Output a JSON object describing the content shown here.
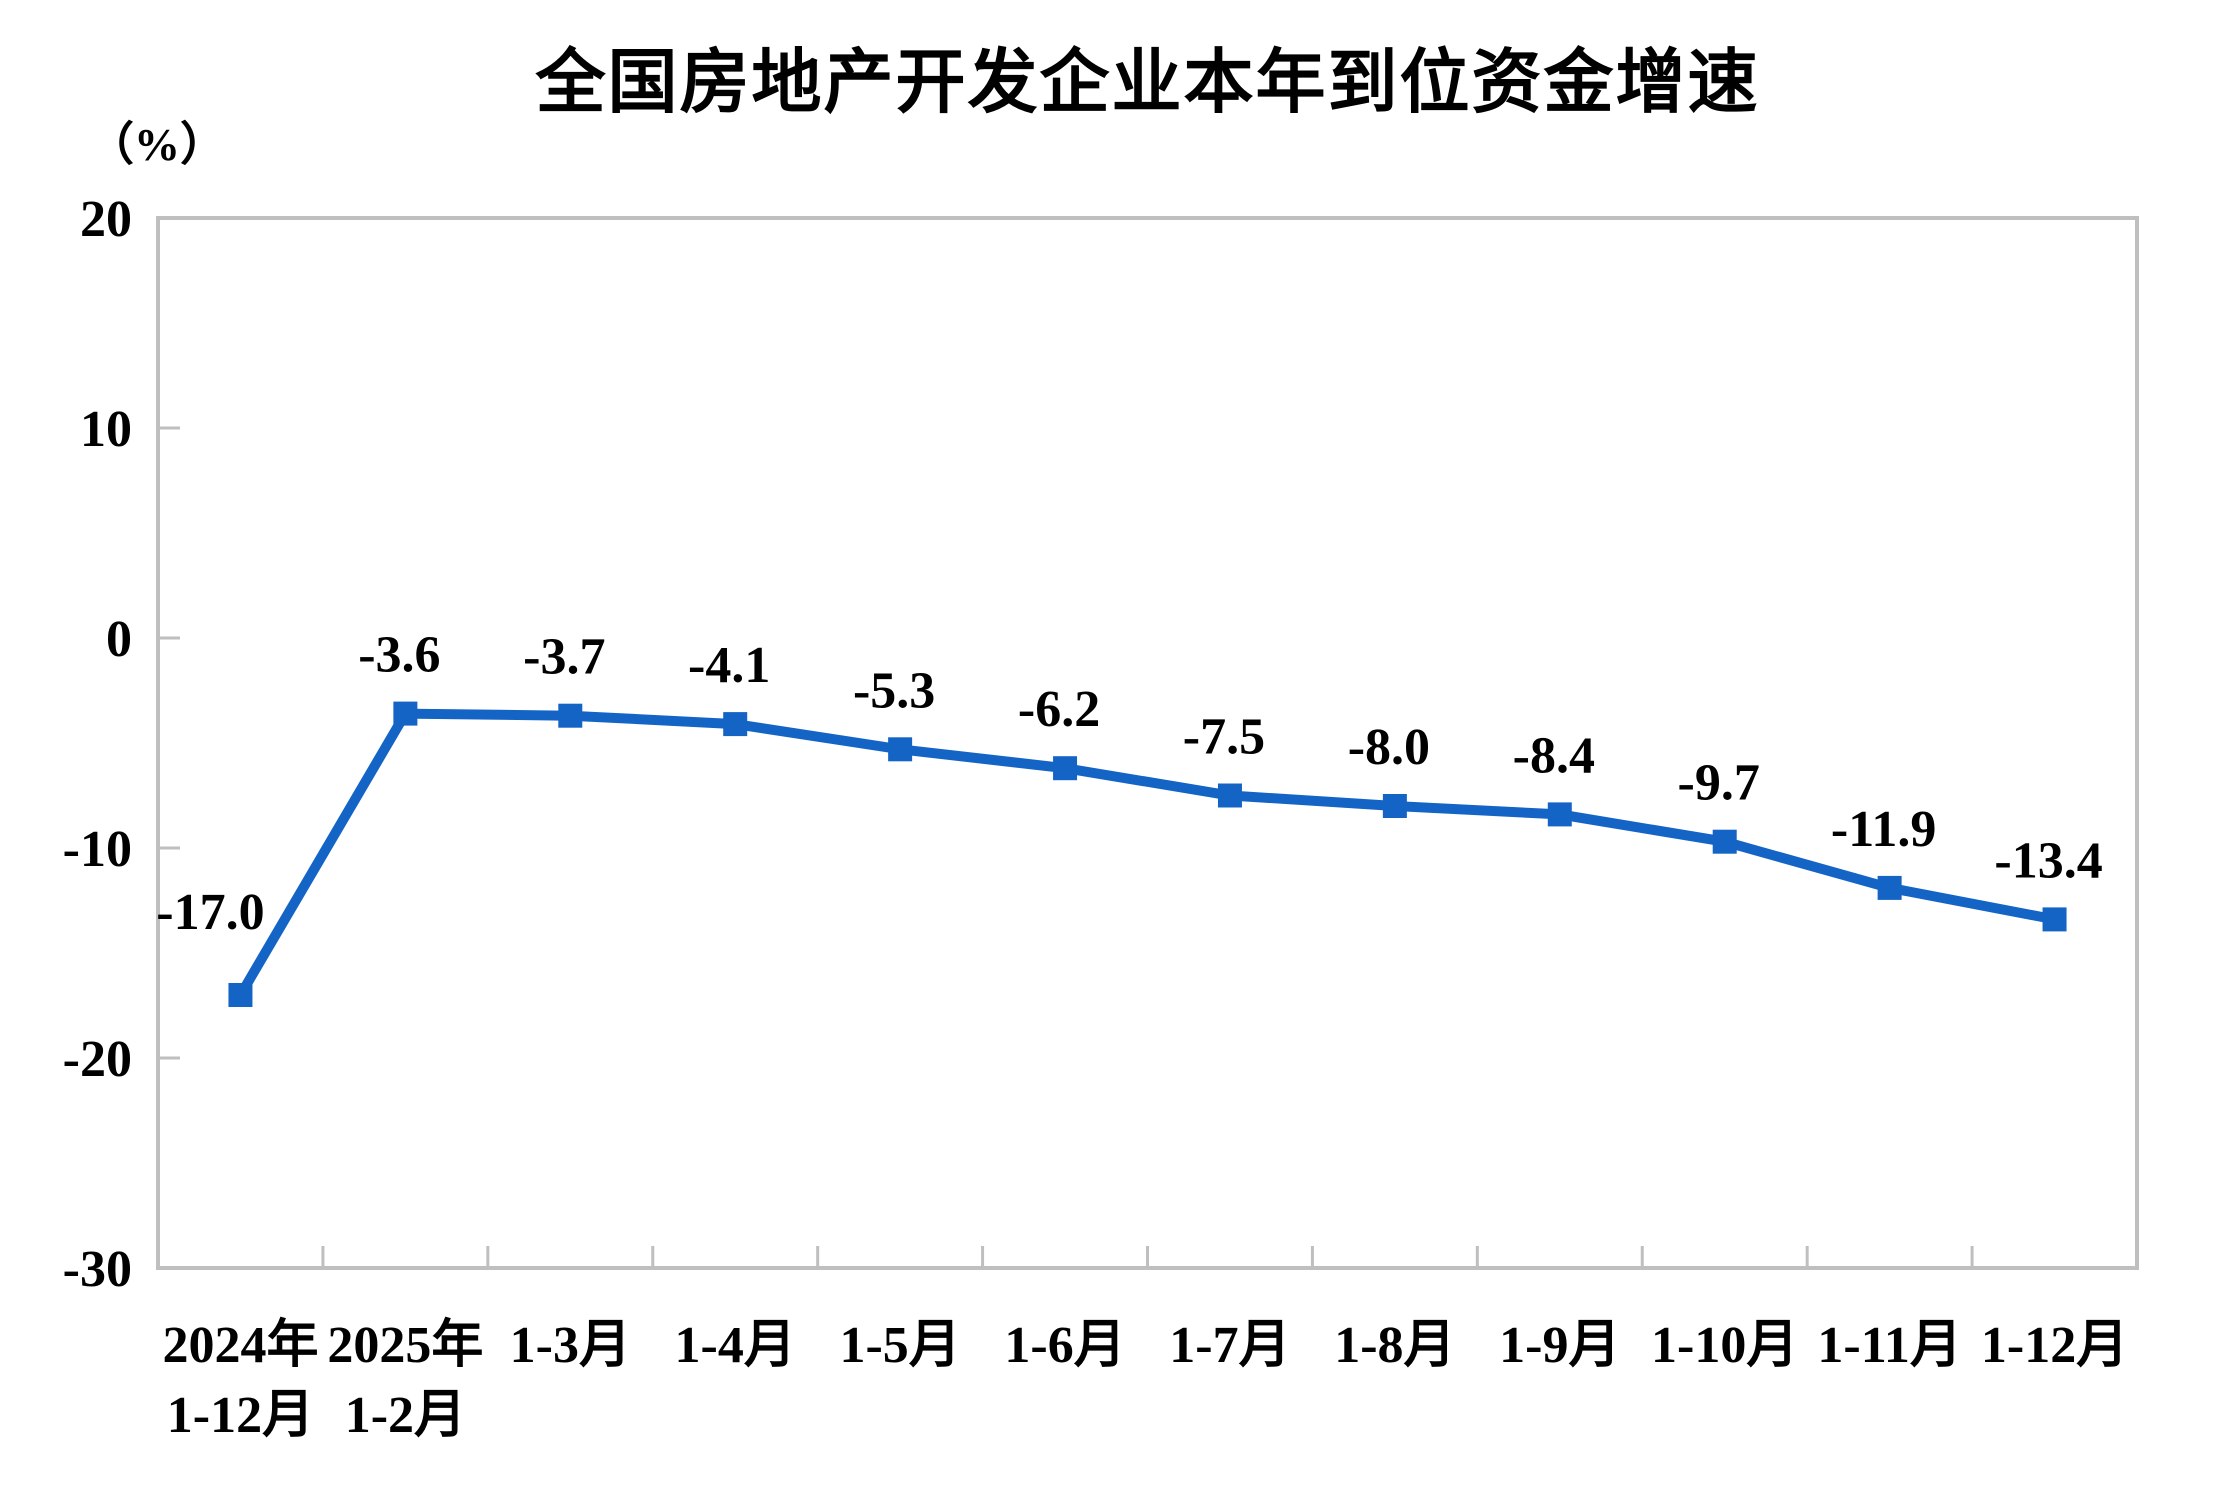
{
  "page": {
    "background": "#ffffff"
  },
  "chart_data": {
    "type": "line",
    "title": "全国房地产开发企业本年到位资金增速",
    "ylabel": "（%）",
    "xlabel": "",
    "categories": [
      [
        "2024年",
        "1-12月"
      ],
      [
        "2025年",
        "1-2月"
      ],
      [
        "1-3月"
      ],
      [
        "1-4月"
      ],
      [
        "1-5月"
      ],
      [
        "1-6月"
      ],
      [
        "1-7月"
      ],
      [
        "1-8月"
      ],
      [
        "1-9月"
      ],
      [
        "1-10月"
      ],
      [
        "1-11月"
      ],
      [
        "1-12月"
      ]
    ],
    "series": [
      {
        "name": "本年到位资金增速",
        "values": [
          -17.0,
          -3.6,
          -3.7,
          -4.1,
          -5.3,
          -6.2,
          -7.5,
          -8.0,
          -8.4,
          -9.7,
          -11.9,
          -13.4
        ],
        "labels": [
          "-17.0",
          "-3.6",
          "-3.7",
          "-4.1",
          "-5.3",
          "-6.2",
          "-7.5",
          "-8.0",
          "-8.4",
          "-9.7",
          "-11.9",
          "-13.4"
        ]
      }
    ],
    "yticks": [
      20,
      10,
      0,
      -10,
      -20,
      -30
    ],
    "ylim": [
      -30,
      20
    ],
    "grid": false,
    "legend_position": "none",
    "marker": "square",
    "line_color": "#1464c6",
    "axis_color": "#bfbfbf",
    "text_color": "#000000"
  }
}
